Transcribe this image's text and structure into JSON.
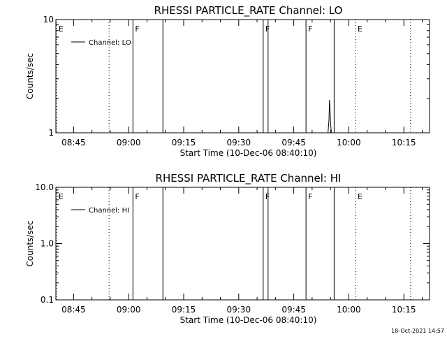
{
  "footer_text": "18-Oct-2021 14:57",
  "chart_data": [
    {
      "type": "line",
      "title": "RHESSI PARTICLE_RATE Channel: LO",
      "xlabel": "Start Time (10-Dec-06 08:40:10)",
      "ylabel": "Counts/sec",
      "yscale": "log",
      "ylim": [
        1,
        10
      ],
      "xlim": [
        "08:40:10",
        "10:22:00"
      ],
      "ytick_labels": [
        "1",
        "10"
      ],
      "xtick_labels": [
        "08:45",
        "09:00",
        "09:15",
        "09:30",
        "09:45",
        "10:00",
        "10:15"
      ],
      "legend": {
        "position": "top-left",
        "label": "Channel: LO"
      },
      "events": [
        {
          "time": "08:40:20",
          "label": "E",
          "style": "dotted"
        },
        {
          "time": "08:54:40",
          "label": "",
          "style": "dotted"
        },
        {
          "time": "09:01:10",
          "label": "F",
          "style": "solid"
        },
        {
          "time": "09:09:20",
          "label": "",
          "style": "solid"
        },
        {
          "time": "09:36:40",
          "label": "F",
          "style": "solid"
        },
        {
          "time": "09:38:00",
          "label": "",
          "style": "solid"
        },
        {
          "time": "09:48:20",
          "label": "F",
          "style": "solid"
        },
        {
          "time": "09:56:00",
          "label": "",
          "style": "solid"
        },
        {
          "time": "10:01:50",
          "label": "E",
          "style": "dotted"
        },
        {
          "time": "10:16:50",
          "label": "",
          "style": "dotted"
        }
      ],
      "series": [
        {
          "x": [
            "09:54:20",
            "09:54:35",
            "09:54:45",
            "09:54:55",
            "09:55:05",
            "09:55:15"
          ],
          "y": [
            1.0,
            1.3,
            1.95,
            1.5,
            1.15,
            1.0
          ]
        }
      ]
    },
    {
      "type": "line",
      "title": "RHESSI PARTICLE_RATE Channel: HI",
      "xlabel": "Start Time (10-Dec-06 08:40:10)",
      "ylabel": "Counts/sec",
      "yscale": "log",
      "ylim": [
        0.1,
        10
      ],
      "xlim": [
        "08:40:10",
        "10:22:00"
      ],
      "ytick_labels": [
        "0.1",
        "1.0",
        "10.0"
      ],
      "xtick_labels": [
        "08:45",
        "09:00",
        "09:15",
        "09:30",
        "09:45",
        "10:00",
        "10:15"
      ],
      "legend": {
        "position": "top-left",
        "label": "Channel: HI"
      },
      "events": [
        {
          "time": "08:40:20",
          "label": "E",
          "style": "dotted"
        },
        {
          "time": "08:54:40",
          "label": "",
          "style": "dotted"
        },
        {
          "time": "09:01:10",
          "label": "F",
          "style": "solid"
        },
        {
          "time": "09:09:20",
          "label": "",
          "style": "solid"
        },
        {
          "time": "09:36:40",
          "label": "F",
          "style": "solid"
        },
        {
          "time": "09:38:00",
          "label": "",
          "style": "solid"
        },
        {
          "time": "09:48:20",
          "label": "F",
          "style": "solid"
        },
        {
          "time": "09:56:00",
          "label": "",
          "style": "solid"
        },
        {
          "time": "10:01:50",
          "label": "E",
          "style": "dotted"
        },
        {
          "time": "10:16:50",
          "label": "",
          "style": "dotted"
        }
      ],
      "series": []
    }
  ]
}
